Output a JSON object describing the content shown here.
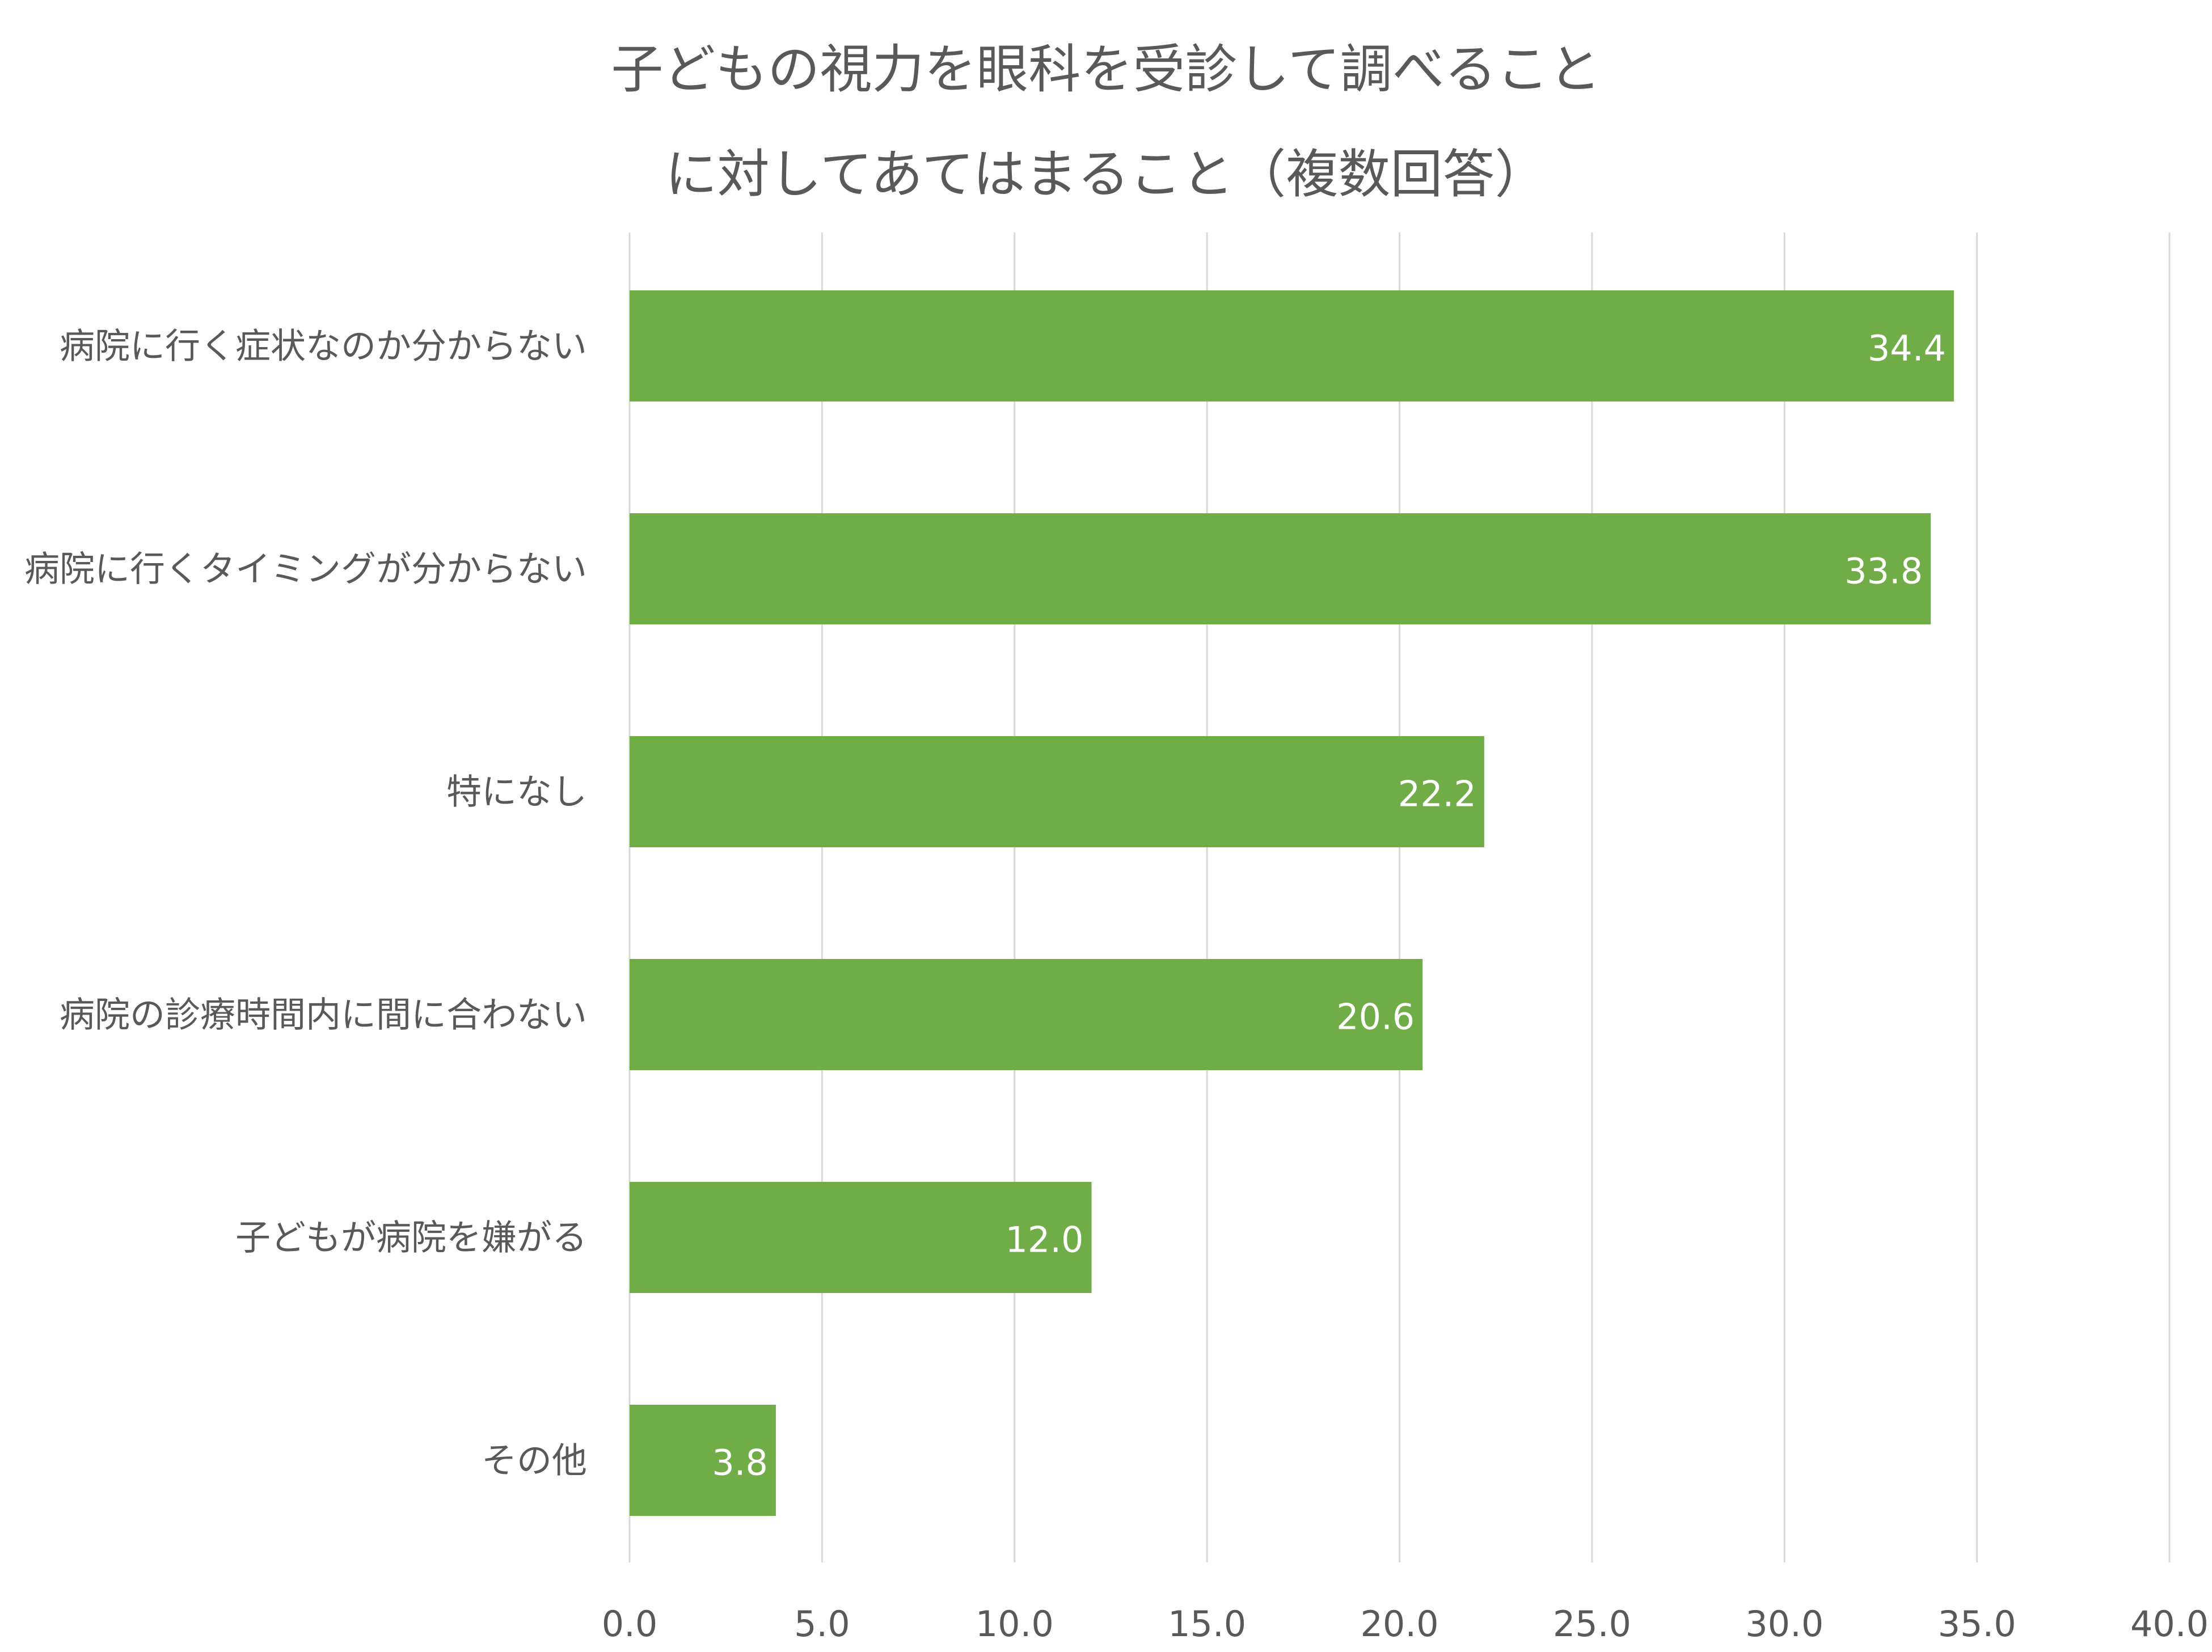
{
  "chart_data": {
    "type": "bar",
    "orientation": "horizontal",
    "title": "子どもの視力を眼科を受診して調べること に対してあてはまること（複数回答）",
    "title_lines": [
      "子どもの視力を眼科を受診して調べること",
      "に対してあてはまること（複数回答）"
    ],
    "categories": [
      "病院に行く症状なのか分からない",
      "病院に行くタイミングが分からない",
      "特になし",
      "病院の診療時間内に間に合わない",
      "子どもが病院を嫌がる",
      "その他"
    ],
    "values": [
      34.4,
      33.8,
      22.2,
      20.6,
      12.0,
      3.8
    ],
    "value_labels": [
      "34.4",
      "33.8",
      "22.2",
      "20.6",
      "12.0",
      "3.8"
    ],
    "xlim": [
      0,
      40
    ],
    "x_ticks": [
      "0.0",
      "5.0",
      "10.0",
      "15.0",
      "20.0",
      "25.0",
      "30.0",
      "35.0",
      "40.0"
    ],
    "xlabel": "",
    "ylabel": "",
    "grid": "vertical",
    "legend": "none",
    "colors": {
      "bar": "#70AD47",
      "grid": "#D9D9D9",
      "text": "#595959",
      "data_label": "#FFFFFF"
    }
  }
}
